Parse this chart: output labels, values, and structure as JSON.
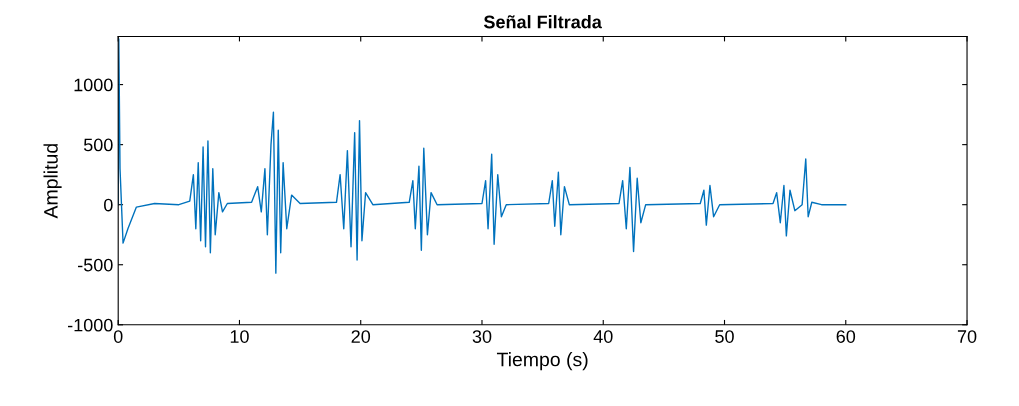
{
  "chart_data": {
    "type": "line",
    "title": "Señal Filtrada",
    "xlabel": "Tiempo (s)",
    "ylabel": "Amplitud",
    "xlim": [
      0,
      70
    ],
    "xticks": [
      0,
      10,
      20,
      30,
      40,
      50,
      60,
      70
    ],
    "ylim": [
      -1000,
      1400
    ],
    "yticks": [
      -1000,
      -500,
      0,
      500,
      1000
    ],
    "grid": false,
    "line_style": "solid",
    "series": [
      {
        "color": "#0072bd",
        "x": [
          0,
          0.05,
          0.15,
          0.4,
          0.8,
          1.5,
          3,
          5,
          5.9,
          6.2,
          6.4,
          6.6,
          6.8,
          7.0,
          7.2,
          7.4,
          7.6,
          7.8,
          8.0,
          8.3,
          8.6,
          9,
          11,
          11.5,
          11.8,
          12.1,
          12.3,
          12.6,
          12.8,
          13.0,
          13.2,
          13.4,
          13.6,
          13.9,
          14.3,
          15,
          18,
          18.3,
          18.6,
          18.9,
          19.2,
          19.5,
          19.7,
          19.9,
          20.1,
          20.4,
          21,
          24,
          24.3,
          24.5,
          24.8,
          25.0,
          25.2,
          25.5,
          25.8,
          26.3,
          30,
          30.3,
          30.5,
          30.8,
          31.0,
          31.3,
          31.6,
          32,
          35.5,
          35.8,
          36.0,
          36.3,
          36.5,
          36.8,
          37.2,
          41.3,
          41.6,
          41.9,
          42.2,
          42.5,
          42.8,
          43.1,
          43.5,
          48,
          48.3,
          48.5,
          48.8,
          49.1,
          49.6,
          54,
          54.3,
          54.6,
          54.9,
          55.1,
          55.4,
          55.8,
          56.4,
          56.7,
          56.9,
          57.2,
          58,
          60
        ],
        "values": [
          0,
          1380,
          300,
          -320,
          -200,
          -20,
          10,
          0,
          30,
          250,
          -200,
          350,
          -300,
          480,
          -350,
          530,
          -400,
          300,
          -250,
          100,
          -60,
          10,
          20,
          150,
          -60,
          300,
          -250,
          500,
          770,
          -570,
          620,
          -400,
          350,
          -200,
          80,
          10,
          20,
          250,
          -200,
          450,
          -350,
          600,
          -460,
          700,
          -300,
          100,
          0,
          20,
          200,
          -200,
          320,
          -380,
          470,
          -250,
          100,
          0,
          10,
          200,
          -200,
          420,
          -330,
          250,
          -100,
          0,
          10,
          200,
          -180,
          270,
          -250,
          150,
          0,
          10,
          200,
          -200,
          310,
          -390,
          220,
          -150,
          0,
          10,
          120,
          -170,
          160,
          -100,
          0,
          10,
          100,
          -150,
          160,
          -260,
          120,
          -50,
          0,
          380,
          -100,
          20,
          0,
          0
        ]
      }
    ]
  }
}
